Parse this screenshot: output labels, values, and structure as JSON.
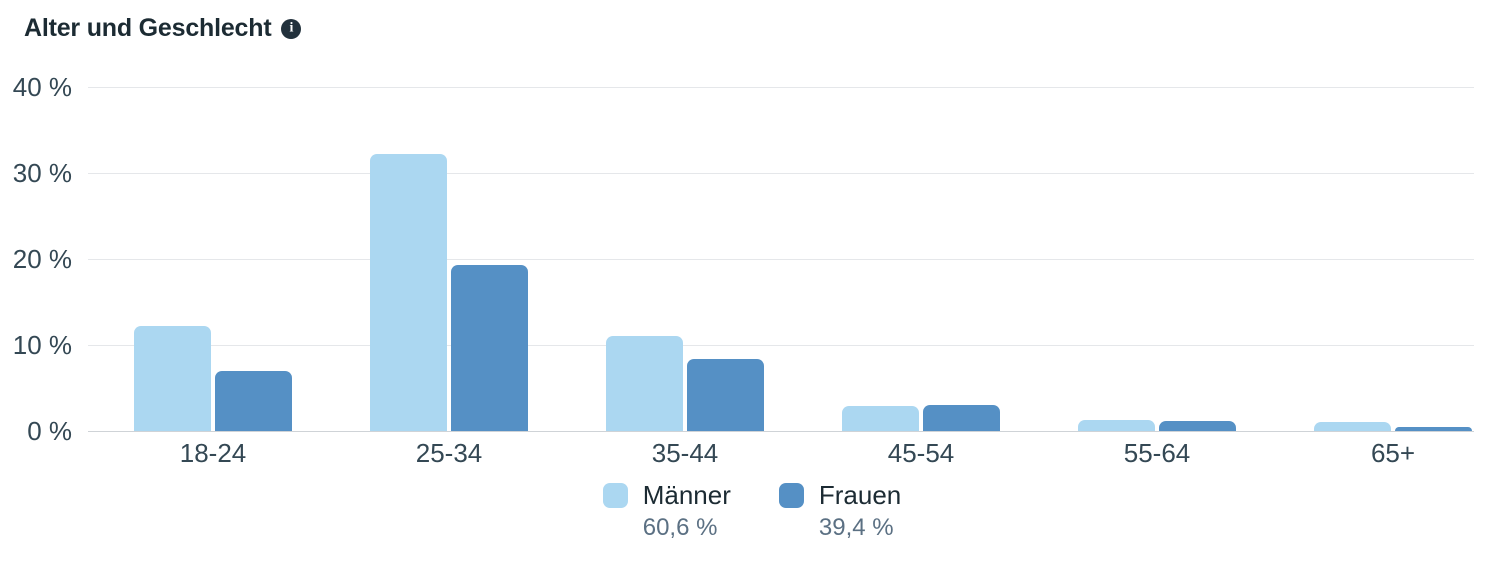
{
  "header": {
    "title": "Alter und Geschlecht",
    "info_icon_glyph": "i"
  },
  "colors": {
    "maenner": "#abd7f1",
    "frauen": "#5590c5",
    "grid": "#e5e7ea",
    "axis_line": "#cfd3d7",
    "title_text": "#1c2b33",
    "axis_text": "#344854",
    "secondary_text": "#5b7083"
  },
  "chart_data": {
    "type": "bar",
    "title": "Alter und Geschlecht",
    "categories": [
      "18-24",
      "25-34",
      "35-44",
      "45-54",
      "55-64",
      "65+"
    ],
    "series": [
      {
        "name": "Männer",
        "total_label": "60,6 %",
        "color_key": "maenner",
        "values": [
          12.2,
          32.2,
          11.0,
          2.9,
          1.3,
          1.0
        ]
      },
      {
        "name": "Frauen",
        "total_label": "39,4 %",
        "color_key": "frauen",
        "values": [
          7.0,
          19.3,
          8.4,
          3.0,
          1.2,
          0.5
        ]
      }
    ],
    "y_ticks": [
      "0 %",
      "10 %",
      "20 %",
      "30 %",
      "40 %"
    ],
    "ylim": [
      0,
      40
    ],
    "xlabel": "",
    "ylabel": "",
    "grid": true,
    "legend_position": "bottom"
  },
  "legend": {
    "items": [
      {
        "label": "Männer",
        "pct": "60,6 %",
        "color_key": "maenner"
      },
      {
        "label": "Frauen",
        "pct": "39,4 %",
        "color_key": "frauen"
      }
    ]
  }
}
